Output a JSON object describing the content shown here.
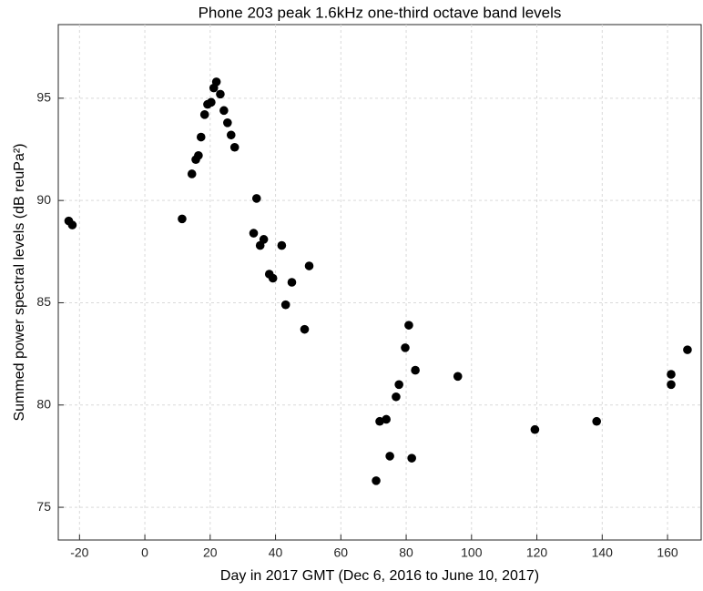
{
  "chart_data": {
    "type": "scatter",
    "title": "Phone 203 peak 1.6kHz one-third octave band levels",
    "x_label": "Day in 2017 GMT (Dec 6, 2016 to June 10, 2017)",
    "y_label": "Summed power spectral levels (dB reuPa²)",
    "x": [
      -23.3,
      -22.2,
      11.4,
      14.4,
      15.6,
      16.4,
      17.2,
      18.3,
      19.2,
      20.3,
      21.1,
      21.9,
      23.1,
      24.2,
      25.3,
      26.4,
      27.5,
      33.3,
      34.2,
      35.3,
      36.4,
      38.1,
      39.2,
      41.9,
      43.1,
      45.0,
      48.9,
      50.3,
      70.8,
      71.9,
      73.9,
      75.0,
      76.9,
      77.8,
      79.7,
      80.8,
      81.7,
      82.8,
      95.8,
      119.4,
      138.3,
      161.1,
      161.1,
      166.1
    ],
    "values": [
      89.0,
      88.8,
      89.1,
      91.3,
      92.0,
      92.2,
      93.1,
      94.2,
      94.7,
      94.8,
      95.5,
      95.8,
      95.2,
      94.4,
      93.8,
      93.2,
      92.6,
      88.4,
      90.1,
      87.8,
      88.1,
      86.4,
      86.2,
      87.8,
      84.9,
      86.0,
      83.7,
      86.8,
      76.3,
      79.2,
      79.3,
      77.5,
      80.4,
      81.0,
      82.8,
      83.9,
      77.4,
      81.7,
      81.4,
      78.8,
      79.2,
      81.5,
      81.0,
      82.7
    ],
    "color": "#000000",
    "xlim": [
      -26.5,
      170.3
    ],
    "ylim": [
      73.4,
      98.6
    ],
    "xticks": [
      -20,
      0,
      20,
      40,
      60,
      80,
      100,
      120,
      140,
      160
    ],
    "yticks": [
      75,
      80,
      85,
      90,
      95
    ],
    "grid": true
  }
}
